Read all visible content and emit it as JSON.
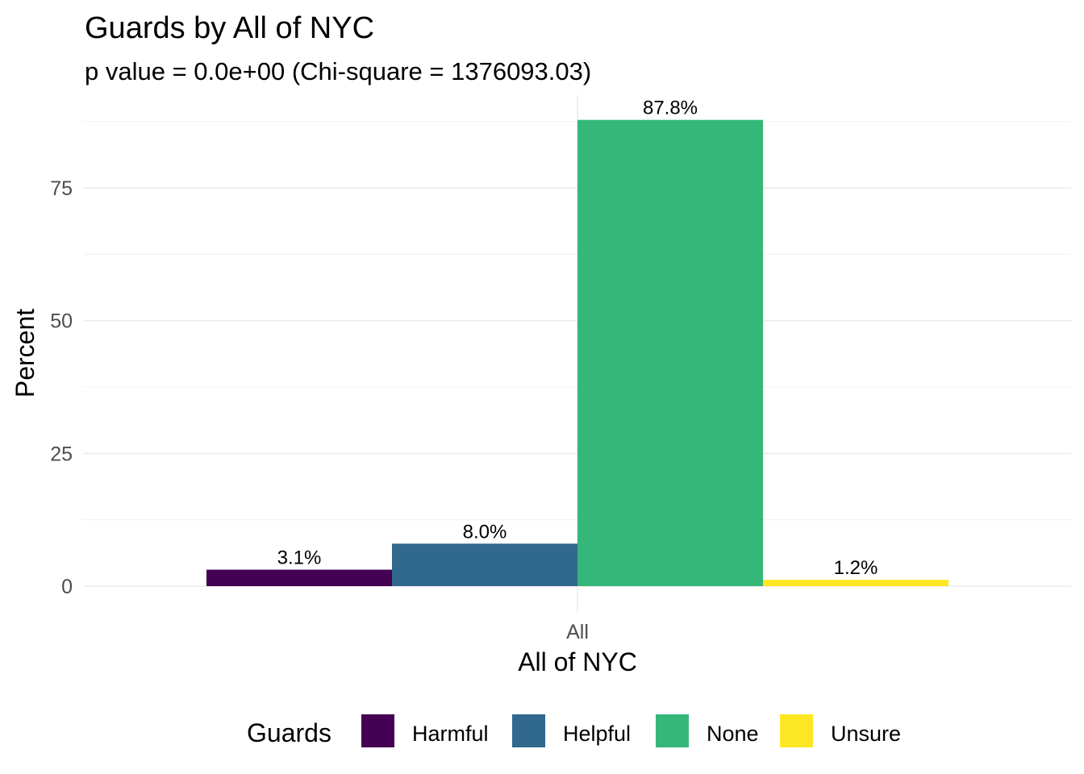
{
  "chart_data": {
    "type": "bar",
    "title": "Guards by All of NYC",
    "subtitle": "p value = 0.0e+00 (Chi-square = 1376093.03)",
    "xlabel": "All of NYC",
    "ylabel": "Percent",
    "categories": [
      "All"
    ],
    "series": [
      {
        "name": "Harmful",
        "values": [
          3.1
        ],
        "label": "3.1%",
        "color": "#440154"
      },
      {
        "name": "Helpful",
        "values": [
          8.0
        ],
        "label": "8.0%",
        "color": "#31688E"
      },
      {
        "name": "None",
        "values": [
          87.8
        ],
        "label": "87.8%",
        "color": "#35B779"
      },
      {
        "name": "Unsure",
        "values": [
          1.2
        ],
        "label": "1.2%",
        "color": "#FDE725"
      }
    ],
    "ylim": [
      0,
      92.4
    ],
    "yticks": [
      0,
      25,
      50,
      75
    ],
    "grid": true,
    "legend": {
      "title": "Guards",
      "position": "bottom"
    }
  }
}
